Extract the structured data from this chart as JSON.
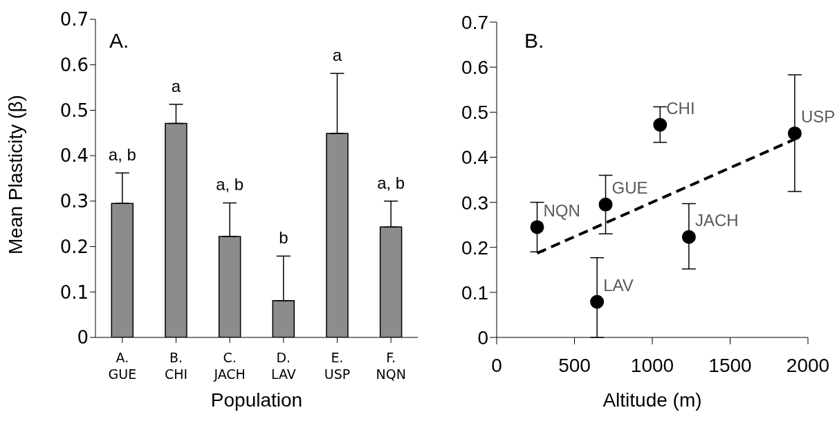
{
  "chart_data": [
    {
      "type": "bar",
      "categories": [
        "A. GUE",
        "B. CHI",
        "C. JACH",
        "D. LAV",
        "E. USP",
        "F. NQN"
      ],
      "values": [
        0.295,
        0.471,
        0.222,
        0.081,
        0.449,
        0.243
      ],
      "color": "#8c8c8c",
      "errors": [
        [
          0.295,
          0.362
        ],
        [
          0.471,
          0.513
        ],
        [
          0.222,
          0.296
        ],
        [
          0.081,
          0.179
        ],
        [
          0.449,
          0.581
        ],
        [
          0.243,
          0.3
        ]
      ],
      "ylim": [
        0,
        0.7
      ],
      "yticks": [
        0,
        0.1,
        0.2,
        0.3,
        0.4,
        0.5,
        0.6,
        0.7
      ],
      "xlabel": "Population",
      "ylabel": "Mean Plasticity (β)",
      "grid": false,
      "legend": false,
      "annotations": [
        "A.",
        {
          "text": "a, b",
          "x": "A. GUE",
          "y": 0.362
        },
        {
          "text": "a",
          "x": "B. CHI",
          "y": 0.513
        },
        {
          "text": "a, b",
          "x": "C. JACH",
          "y": 0.296
        },
        {
          "text": "b",
          "x": "D. LAV",
          "y": 0.179
        },
        {
          "text": "a",
          "x": "E. USP",
          "y": 0.581
        },
        {
          "text": "a, b",
          "x": "F. NQN",
          "y": 0.3
        }
      ]
    },
    {
      "type": "scatter",
      "xlim": [
        0,
        2000
      ],
      "xticks": [
        0,
        500,
        1000,
        1500,
        2000
      ],
      "ylim": [
        0,
        0.7
      ],
      "yticks": [
        0,
        0.1,
        0.2,
        0.3,
        0.4,
        0.5,
        0.6,
        0.7
      ],
      "xlabel": "Altitude (m)",
      "grid": false,
      "legend": false,
      "series": [
        {
          "type": "scatter",
          "color": "#000000",
          "marker": "circle",
          "x": [
            260,
            700,
            645,
            1050,
            1235,
            1915
          ],
          "values": [
            0.245,
            0.295,
            0.079,
            0.472,
            0.223,
            0.453
          ],
          "errors": [
            [
              0.19,
              0.3
            ],
            [
              0.23,
              0.36
            ],
            [
              0,
              0.177
            ],
            [
              0.433,
              0.512
            ],
            [
              0.152,
              0.297
            ],
            [
              0.324,
              0.583
            ]
          ]
        },
        {
          "type": "line",
          "color": "#000000",
          "line_style": "dashed",
          "marker": "none",
          "x": [
            260,
            1915
          ],
          "values": [
            0.187,
            0.44
          ]
        }
      ],
      "annotations": [
        "B.",
        {
          "text": "NQN",
          "x": 260,
          "y": 0.245
        },
        {
          "text": "GUE",
          "x": 700,
          "y": 0.295
        },
        {
          "text": "LAV",
          "x": 645,
          "y": 0.079
        },
        {
          "text": "CHI",
          "x": 1050,
          "y": 0.472
        },
        {
          "text": "JACH",
          "x": 1235,
          "y": 0.223
        },
        {
          "text": "USP",
          "x": 1915,
          "y": 0.453
        }
      ]
    }
  ]
}
